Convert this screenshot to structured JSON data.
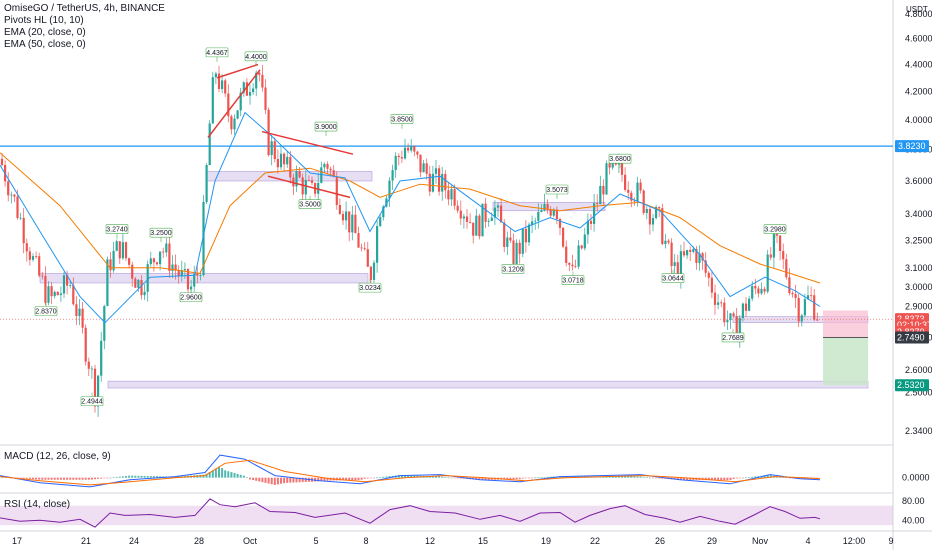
{
  "header": {
    "pair": "OmiseGO / TetherUS, 4h, BINANCE",
    "indicators": [
      "Pivots HL (10, 10)",
      "EMA (20, close, 0)",
      "EMA (50, close, 0)"
    ]
  },
  "currency": "USDT",
  "colors": {
    "up": "#26a69a",
    "down": "#ef5350",
    "ema20": "#2196f3",
    "ema50": "#f57c00",
    "zone": "#d1c4e9",
    "hline": "#2196f3",
    "trendline": "#e53935",
    "macd_line": "#2962ff",
    "signal_line": "#ff6d00",
    "rsi_line": "#7b1fa2",
    "rsi_band": "#e1bee7"
  },
  "chart_data": [
    {
      "type": "candlestick",
      "title": "OmiseGO / TetherUS, 4h, BINANCE",
      "log_scale": true,
      "ylim": [
        2.32,
        4.85
      ],
      "y_ticks": [
        2.34,
        2.5,
        2.6,
        2.75,
        2.9,
        3.0,
        3.1,
        3.25,
        3.4,
        3.6,
        3.8,
        4.0,
        4.2,
        4.4,
        4.6,
        4.8
      ],
      "x_ticks": [
        "17",
        "21",
        "24",
        "28",
        "Oct",
        "5",
        "8",
        "12",
        "15",
        "19",
        "22",
        "26",
        "29",
        "Nov",
        "4",
        "12:00",
        "9"
      ],
      "x_tick_pos": [
        17,
        86,
        134,
        199,
        250,
        316,
        366,
        430,
        483,
        546,
        595,
        660,
        712,
        760,
        808,
        854,
        891
      ],
      "key_points": [
        {
          "x": 0,
          "close": 3.74
        },
        {
          "x": 20,
          "close": 3.38
        },
        {
          "x": 35,
          "close": 3.1
        },
        {
          "x": 50,
          "close": 2.93
        },
        {
          "x": 70,
          "close": 3.02
        },
        {
          "x": 90,
          "close": 2.62
        },
        {
          "x": 96,
          "close": 2.48
        },
        {
          "x": 108,
          "close": 3.12
        },
        {
          "x": 120,
          "close": 3.22
        },
        {
          "x": 140,
          "close": 3.0
        },
        {
          "x": 160,
          "close": 3.22
        },
        {
          "x": 190,
          "close": 2.98
        },
        {
          "x": 200,
          "close": 3.1
        },
        {
          "x": 210,
          "close": 4.0
        },
        {
          "x": 215,
          "close": 4.38
        },
        {
          "x": 230,
          "close": 4.0
        },
        {
          "x": 245,
          "close": 4.2
        },
        {
          "x": 258,
          "close": 4.4
        },
        {
          "x": 268,
          "close": 3.85
        },
        {
          "x": 285,
          "close": 3.68
        },
        {
          "x": 300,
          "close": 3.6
        },
        {
          "x": 312,
          "close": 3.52
        },
        {
          "x": 326,
          "close": 3.74
        },
        {
          "x": 345,
          "close": 3.4
        },
        {
          "x": 358,
          "close": 3.25
        },
        {
          "x": 370,
          "close": 3.04
        },
        {
          "x": 380,
          "close": 3.45
        },
        {
          "x": 395,
          "close": 3.72
        },
        {
          "x": 405,
          "close": 3.82
        },
        {
          "x": 430,
          "close": 3.62
        },
        {
          "x": 455,
          "close": 3.52
        },
        {
          "x": 475,
          "close": 3.32
        },
        {
          "x": 493,
          "close": 3.46
        },
        {
          "x": 512,
          "close": 3.15
        },
        {
          "x": 535,
          "close": 3.35
        },
        {
          "x": 555,
          "close": 3.48
        },
        {
          "x": 572,
          "close": 3.05
        },
        {
          "x": 590,
          "close": 3.35
        },
        {
          "x": 605,
          "close": 3.62
        },
        {
          "x": 620,
          "close": 3.66
        },
        {
          "x": 640,
          "close": 3.5
        },
        {
          "x": 660,
          "close": 3.35
        },
        {
          "x": 673,
          "close": 3.08
        },
        {
          "x": 695,
          "close": 3.2
        },
        {
          "x": 712,
          "close": 3.0
        },
        {
          "x": 733,
          "close": 2.78
        },
        {
          "x": 750,
          "close": 2.95
        },
        {
          "x": 765,
          "close": 3.05
        },
        {
          "x": 775,
          "close": 3.24
        },
        {
          "x": 790,
          "close": 3.02
        },
        {
          "x": 800,
          "close": 2.88
        },
        {
          "x": 810,
          "close": 2.95
        },
        {
          "x": 820,
          "close": 2.84
        }
      ],
      "ema20_points": [
        {
          "x": 0,
          "y": 3.7
        },
        {
          "x": 40,
          "y": 3.3
        },
        {
          "x": 80,
          "y": 2.95
        },
        {
          "x": 105,
          "y": 2.82
        },
        {
          "x": 150,
          "y": 3.05
        },
        {
          "x": 195,
          "y": 3.06
        },
        {
          "x": 215,
          "y": 3.6
        },
        {
          "x": 245,
          "y": 4.05
        },
        {
          "x": 270,
          "y": 3.9
        },
        {
          "x": 310,
          "y": 3.65
        },
        {
          "x": 345,
          "y": 3.62
        },
        {
          "x": 370,
          "y": 3.3
        },
        {
          "x": 400,
          "y": 3.6
        },
        {
          "x": 440,
          "y": 3.63
        },
        {
          "x": 480,
          "y": 3.45
        },
        {
          "x": 515,
          "y": 3.3
        },
        {
          "x": 550,
          "y": 3.38
        },
        {
          "x": 580,
          "y": 3.32
        },
        {
          "x": 620,
          "y": 3.52
        },
        {
          "x": 660,
          "y": 3.42
        },
        {
          "x": 700,
          "y": 3.17
        },
        {
          "x": 730,
          "y": 2.95
        },
        {
          "x": 765,
          "y": 3.05
        },
        {
          "x": 795,
          "y": 2.98
        },
        {
          "x": 820,
          "y": 2.9
        }
      ],
      "ema50_points": [
        {
          "x": 0,
          "y": 3.78
        },
        {
          "x": 60,
          "y": 3.45
        },
        {
          "x": 110,
          "y": 3.1
        },
        {
          "x": 160,
          "y": 3.1
        },
        {
          "x": 200,
          "y": 3.07
        },
        {
          "x": 230,
          "y": 3.45
        },
        {
          "x": 265,
          "y": 3.65
        },
        {
          "x": 310,
          "y": 3.68
        },
        {
          "x": 350,
          "y": 3.6
        },
        {
          "x": 380,
          "y": 3.5
        },
        {
          "x": 420,
          "y": 3.58
        },
        {
          "x": 470,
          "y": 3.55
        },
        {
          "x": 520,
          "y": 3.45
        },
        {
          "x": 560,
          "y": 3.42
        },
        {
          "x": 600,
          "y": 3.45
        },
        {
          "x": 640,
          "y": 3.47
        },
        {
          "x": 680,
          "y": 3.38
        },
        {
          "x": 720,
          "y": 3.22
        },
        {
          "x": 760,
          "y": 3.12
        },
        {
          "x": 790,
          "y": 3.07
        },
        {
          "x": 820,
          "y": 3.02
        }
      ],
      "pivots": [
        {
          "label": "2.8370",
          "x": 46,
          "type": "low",
          "price": 2.92
        },
        {
          "label": "2.4944",
          "x": 92,
          "type": "low",
          "price": 2.5
        },
        {
          "label": "3.2740",
          "x": 117,
          "type": "high",
          "price": 3.26
        },
        {
          "label": "3.2500",
          "x": 161,
          "type": "high",
          "price": 3.24
        },
        {
          "label": "2.9600",
          "x": 191,
          "type": "low",
          "price": 2.99
        },
        {
          "label": "4.4367",
          "x": 217,
          "type": "high",
          "price": 4.42
        },
        {
          "label": "4.4000",
          "x": 256,
          "type": "high",
          "price": 4.39
        },
        {
          "label": "3.9000",
          "x": 326,
          "type": "high",
          "price": 3.89
        },
        {
          "label": "3.5000",
          "x": 310,
          "type": "low",
          "price": 3.51
        },
        {
          "label": "3.8500",
          "x": 402,
          "type": "high",
          "price": 3.94
        },
        {
          "label": "3.0234",
          "x": 370,
          "type": "low",
          "price": 3.04
        },
        {
          "label": "3.1209",
          "x": 513,
          "type": "low",
          "price": 3.14
        },
        {
          "label": "3.5073",
          "x": 557,
          "type": "high",
          "price": 3.49
        },
        {
          "label": "3.0718",
          "x": 573,
          "type": "low",
          "price": 3.08
        },
        {
          "label": "3.6800",
          "x": 620,
          "type": "high",
          "price": 3.68
        },
        {
          "label": "3.0644",
          "x": 673,
          "type": "low",
          "price": 3.09
        },
        {
          "label": "2.7689",
          "x": 733,
          "type": "low",
          "price": 2.79
        },
        {
          "label": "3.2980",
          "x": 775,
          "type": "high",
          "price": 3.26
        }
      ],
      "zones": [
        {
          "x1": 40,
          "x2": 368,
          "low": 3.02,
          "high": 3.07
        },
        {
          "x1": 207,
          "x2": 372,
          "low": 3.6,
          "high": 3.66
        },
        {
          "x1": 493,
          "x2": 605,
          "low": 3.42,
          "high": 3.47
        },
        {
          "x1": 108,
          "x2": 868,
          "low": 2.52,
          "high": 2.55
        },
        {
          "x1": 733,
          "x2": 868,
          "low": 2.82,
          "high": 2.85
        }
      ],
      "horizontal_line": {
        "price": 3.823,
        "label": "3.8230"
      },
      "trendlines": [
        {
          "x1": 208,
          "p1": 3.88,
          "x2": 260,
          "p2": 4.36
        },
        {
          "x1": 217,
          "p1": 4.3,
          "x2": 258,
          "p2": 4.4
        },
        {
          "x1": 262,
          "p1": 3.92,
          "x2": 353,
          "p2": 3.77
        },
        {
          "x1": 268,
          "p1": 3.63,
          "x2": 350,
          "p2": 3.5
        }
      ],
      "position": {
        "x1": 823,
        "x2": 868,
        "entry": 2.749,
        "stop": 2.88,
        "target": 2.532
      },
      "price_tags": [
        {
          "label": "2.8373",
          "price": 2.8373,
          "color": "#ef5350"
        },
        {
          "label": "02:10:37",
          "price": 2.808,
          "color": "#ef5350"
        },
        {
          "label": "2.8370",
          "price": 2.776,
          "color": "#ef5350"
        },
        {
          "label": "2.7490",
          "price": 2.749,
          "color": "#363a45"
        },
        {
          "label": "2.5320",
          "price": 2.532,
          "color": "#089981"
        }
      ]
    },
    {
      "type": "line",
      "title": "MACD (12, 26, close, 9)",
      "y_ticks": [
        0.0
      ],
      "y_tick_labels": [
        "0.0000"
      ],
      "macd_points": [
        [
          0,
          0.02
        ],
        [
          40,
          -0.05
        ],
        [
          90,
          -0.09
        ],
        [
          130,
          -0.02
        ],
        [
          175,
          0.01
        ],
        [
          205,
          0.05
        ],
        [
          220,
          0.22
        ],
        [
          245,
          0.18
        ],
        [
          275,
          0.02
        ],
        [
          320,
          -0.03
        ],
        [
          360,
          -0.06
        ],
        [
          400,
          0.02
        ],
        [
          440,
          0.03
        ],
        [
          480,
          -0.02
        ],
        [
          520,
          -0.04
        ],
        [
          560,
          0.01
        ],
        [
          600,
          0.02
        ],
        [
          640,
          0.03
        ],
        [
          680,
          -0.02
        ],
        [
          730,
          -0.06
        ],
        [
          770,
          0.03
        ],
        [
          800,
          -0.01
        ],
        [
          820,
          -0.02
        ]
      ],
      "signal_points": [
        [
          0,
          0.01
        ],
        [
          40,
          -0.03
        ],
        [
          90,
          -0.07
        ],
        [
          130,
          -0.04
        ],
        [
          175,
          0.0
        ],
        [
          205,
          0.02
        ],
        [
          225,
          0.14
        ],
        [
          250,
          0.17
        ],
        [
          285,
          0.06
        ],
        [
          330,
          -0.01
        ],
        [
          365,
          -0.04
        ],
        [
          405,
          0.0
        ],
        [
          445,
          0.02
        ],
        [
          485,
          0.0
        ],
        [
          525,
          -0.03
        ],
        [
          565,
          0.0
        ],
        [
          605,
          0.01
        ],
        [
          645,
          0.02
        ],
        [
          685,
          0.0
        ],
        [
          735,
          -0.04
        ],
        [
          775,
          0.01
        ],
        [
          805,
          0.0
        ],
        [
          820,
          -0.01
        ]
      ]
    },
    {
      "type": "line",
      "title": "RSI (14, close)",
      "ylim": [
        20,
        90
      ],
      "y_ticks": [
        40,
        80
      ],
      "y_tick_labels": [
        "40.00",
        "80.00"
      ],
      "band": [
        30,
        70
      ],
      "rsi_points": [
        [
          0,
          45
        ],
        [
          20,
          38
        ],
        [
          40,
          40
        ],
        [
          60,
          36
        ],
        [
          80,
          42
        ],
        [
          95,
          26
        ],
        [
          110,
          55
        ],
        [
          125,
          50
        ],
        [
          150,
          52
        ],
        [
          175,
          46
        ],
        [
          195,
          50
        ],
        [
          210,
          84
        ],
        [
          220,
          72
        ],
        [
          235,
          68
        ],
        [
          255,
          76
        ],
        [
          270,
          58
        ],
        [
          295,
          56
        ],
        [
          315,
          46
        ],
        [
          345,
          55
        ],
        [
          370,
          34
        ],
        [
          390,
          62
        ],
        [
          410,
          70
        ],
        [
          430,
          58
        ],
        [
          455,
          55
        ],
        [
          480,
          42
        ],
        [
          500,
          50
        ],
        [
          520,
          38
        ],
        [
          540,
          55
        ],
        [
          560,
          56
        ],
        [
          575,
          36
        ],
        [
          590,
          50
        ],
        [
          610,
          64
        ],
        [
          625,
          70
        ],
        [
          645,
          52
        ],
        [
          665,
          44
        ],
        [
          680,
          36
        ],
        [
          700,
          48
        ],
        [
          720,
          38
        ],
        [
          735,
          32
        ],
        [
          755,
          52
        ],
        [
          770,
          68
        ],
        [
          785,
          58
        ],
        [
          800,
          44
        ],
        [
          815,
          46
        ],
        [
          820,
          43
        ]
      ]
    }
  ]
}
